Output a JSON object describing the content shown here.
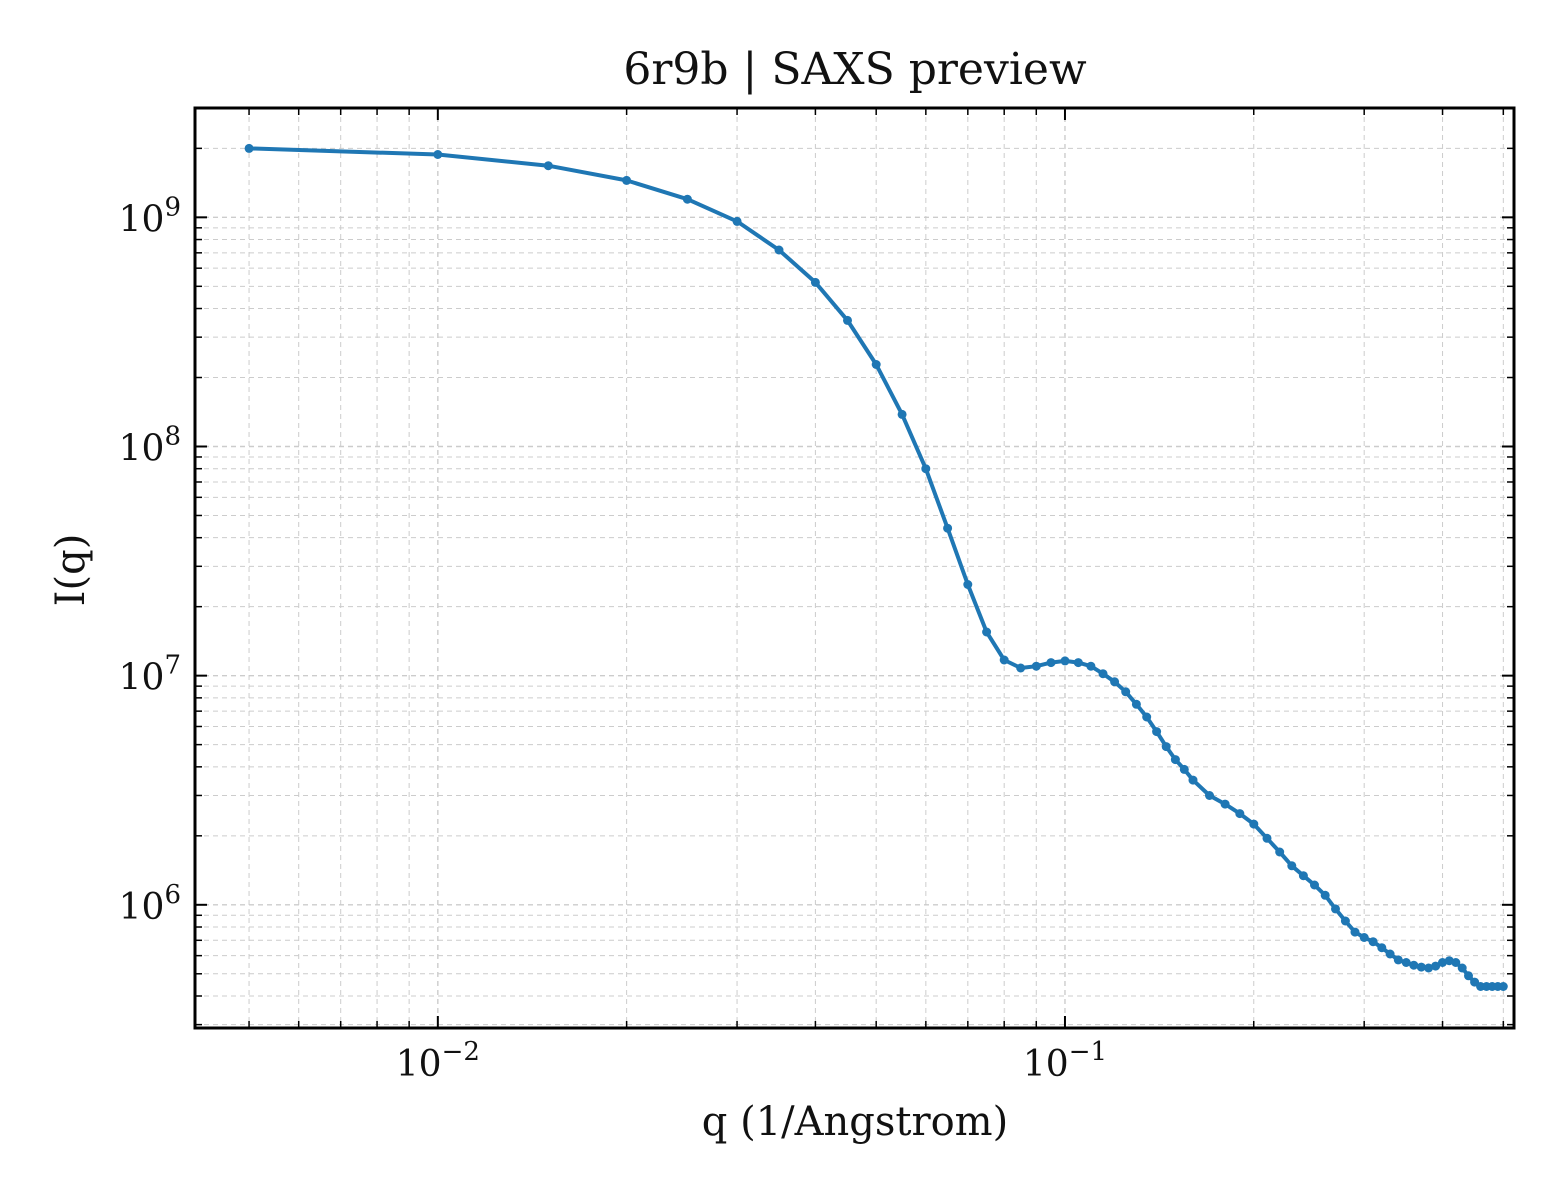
{
  "chart_data": {
    "type": "line",
    "title": "6r9b | SAXS preview",
    "xlabel": "q (1/Angstrom)",
    "ylabel": "I(q)",
    "xscale": "log",
    "yscale": "log",
    "xlim": [
      0.0041,
      0.52
    ],
    "ylim": [
      290000,
      3000000000
    ],
    "grid": true,
    "legend": "none",
    "colors": {
      "line": "#1f77b4",
      "grid": "#cccccc",
      "axes": "#000000"
    },
    "x_ticks": [
      {
        "value": 0.01,
        "base": "10",
        "exp": "−2"
      },
      {
        "value": 0.1,
        "base": "10",
        "exp": "−1"
      }
    ],
    "y_ticks": [
      {
        "value": 1000000,
        "base": "10",
        "exp": "6"
      },
      {
        "value": 10000000,
        "base": "10",
        "exp": "7"
      },
      {
        "value": 100000000,
        "base": "10",
        "exp": "8"
      },
      {
        "value": 1000000000,
        "base": "10",
        "exp": "9"
      }
    ],
    "series": [
      {
        "x": [
          0.005,
          0.01,
          0.015,
          0.02,
          0.025,
          0.03,
          0.035,
          0.04,
          0.045,
          0.05,
          0.055,
          0.06,
          0.065,
          0.07,
          0.075,
          0.08,
          0.085,
          0.09,
          0.095,
          0.1,
          0.105,
          0.11,
          0.115,
          0.12,
          0.125,
          0.13,
          0.135,
          0.14,
          0.145,
          0.15,
          0.155,
          0.16,
          0.17,
          0.18,
          0.19,
          0.2,
          0.21,
          0.22,
          0.23,
          0.24,
          0.25,
          0.26,
          0.27,
          0.28,
          0.29,
          0.3,
          0.31,
          0.32,
          0.33,
          0.34,
          0.35,
          0.36,
          0.37,
          0.38,
          0.39,
          0.4,
          0.41,
          0.42,
          0.43,
          0.44,
          0.45,
          0.46,
          0.47,
          0.48,
          0.49,
          0.5
        ],
        "values": [
          2000000000,
          1880000000,
          1680000000,
          1450000000,
          1200000000,
          960000000,
          720000000,
          520000000,
          355000000,
          228000000,
          138000000,
          80000000,
          44000000,
          25000000,
          15500000,
          11700000,
          10800000,
          11000000,
          11400000,
          11600000,
          11400000,
          11000000,
          10200000,
          9400000,
          8500000,
          7500000,
          6600000,
          5700000,
          4900000,
          4300000,
          3900000,
          3500000,
          3000000,
          2750000,
          2500000,
          2250000,
          1950000,
          1700000,
          1480000,
          1340000,
          1220000,
          1100000,
          960000,
          850000,
          760000,
          720000,
          690000,
          650000,
          610000,
          575000,
          560000,
          545000,
          535000,
          530000,
          540000,
          560000,
          570000,
          560000,
          530000,
          490000,
          460000,
          440000,
          440000,
          440000,
          440000,
          440000
        ]
      }
    ]
  }
}
